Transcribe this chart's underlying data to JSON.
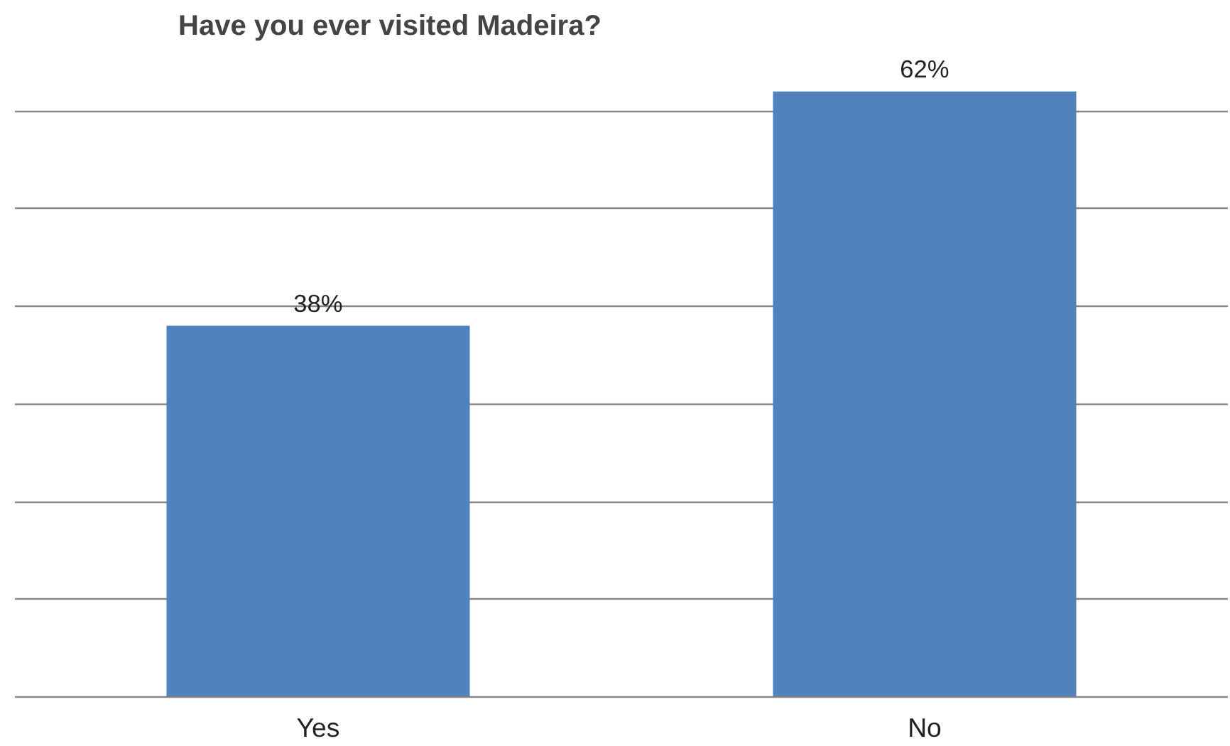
{
  "chart_data": {
    "type": "bar",
    "title": "Have you ever visited Madeira?",
    "categories": [
      "Yes",
      "No"
    ],
    "values": [
      38,
      62
    ],
    "color": "#4f81bd",
    "value_labels": [
      "38%",
      "62%"
    ],
    "yticks": [
      {
        "value": 0,
        "label": null
      },
      {
        "value": 10,
        "label": null
      },
      {
        "value": 20,
        "label": null
      },
      {
        "value": 30,
        "label": null
      },
      {
        "value": 40,
        "label": null
      },
      {
        "value": 50,
        "label": null
      },
      {
        "value": 60,
        "label": null
      }
    ],
    "tick_labels": "x",
    "grid": "y"
  }
}
